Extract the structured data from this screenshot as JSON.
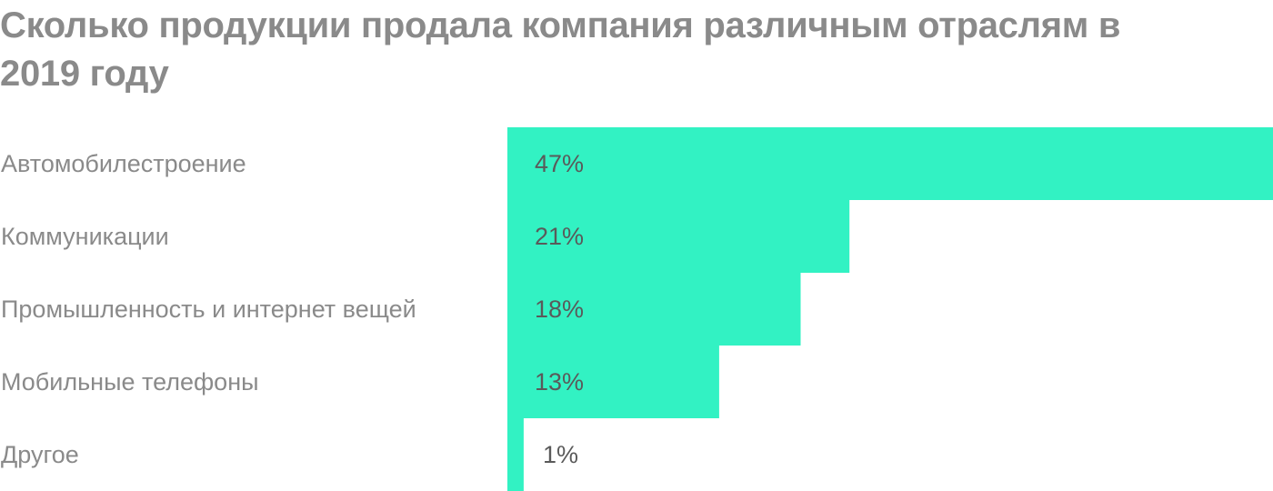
{
  "chart_data": {
    "type": "bar",
    "orientation": "horizontal",
    "title": "Сколько продукции продала компания различным отраслям в 2019 году",
    "categories": [
      "Автомобилестроение",
      "Коммуникации",
      "Промышленность и интернет вещей",
      "Мобильные телефоны",
      "Другое"
    ],
    "values": [
      47,
      21,
      18,
      13,
      1
    ],
    "value_labels": [
      "47%",
      "21%",
      "18%",
      "13%",
      "1%"
    ],
    "unit": "%",
    "xlim": [
      0,
      47
    ],
    "grid": false,
    "legend": "none",
    "bar_color": "#32f2c3"
  }
}
